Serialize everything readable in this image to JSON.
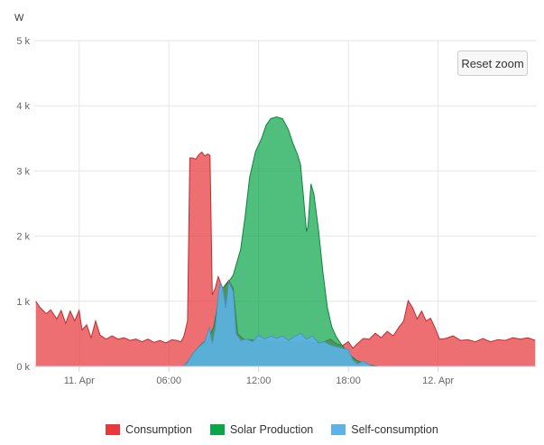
{
  "chart_data": {
    "type": "area",
    "y_unit_label": "W",
    "ylim": [
      0,
      5000
    ],
    "y_ticks": [
      0,
      1000,
      2000,
      3000,
      4000,
      5000
    ],
    "y_tick_labels": [
      "0 k",
      "1 k",
      "2 k",
      "3 k",
      "4 k",
      "5 k"
    ],
    "x_range_hours": [
      -7.0,
      47.0
    ],
    "x_ticks": [
      {
        "hour": 0,
        "label": "11. Apr"
      },
      {
        "hour": 6,
        "label": "06:00"
      },
      {
        "hour": 12,
        "label": "12:00"
      },
      {
        "hour": 18,
        "label": "18:00"
      },
      {
        "hour": 24,
        "label": "12. Apr"
      }
    ],
    "grid": true,
    "legend_position": "bottom-center",
    "series": [
      {
        "name": "Consumption",
        "color": "#e8383b",
        "fill_opacity": 0.72,
        "points": [
          [
            -2.9,
            1000
          ],
          [
            -2.6,
            900
          ],
          [
            -2.2,
            810
          ],
          [
            -1.9,
            870
          ],
          [
            -1.5,
            730
          ],
          [
            -1.2,
            860
          ],
          [
            -0.9,
            660
          ],
          [
            -0.6,
            850
          ],
          [
            -0.3,
            700
          ],
          [
            0.0,
            860
          ],
          [
            0.2,
            560
          ],
          [
            0.5,
            640
          ],
          [
            0.8,
            440
          ],
          [
            1.1,
            700
          ],
          [
            1.4,
            480
          ],
          [
            1.8,
            420
          ],
          [
            2.2,
            470
          ],
          [
            2.6,
            420
          ],
          [
            3.0,
            440
          ],
          [
            3.4,
            400
          ],
          [
            3.8,
            420
          ],
          [
            4.2,
            380
          ],
          [
            4.6,
            420
          ],
          [
            5.0,
            370
          ],
          [
            5.4,
            400
          ],
          [
            5.8,
            360
          ],
          [
            6.2,
            410
          ],
          [
            6.5,
            400
          ],
          [
            6.8,
            380
          ],
          [
            7.0,
            460
          ],
          [
            7.25,
            700
          ],
          [
            7.4,
            3200
          ],
          [
            7.6,
            3200
          ],
          [
            7.8,
            3180
          ],
          [
            8.0,
            3250
          ],
          [
            8.2,
            3290
          ],
          [
            8.4,
            3230
          ],
          [
            8.6,
            3260
          ],
          [
            8.75,
            3240
          ],
          [
            8.9,
            1100
          ],
          [
            9.1,
            1200
          ],
          [
            9.3,
            1380
          ],
          [
            9.6,
            1200
          ],
          [
            10.0,
            1320
          ],
          [
            10.3,
            1200
          ],
          [
            10.6,
            500
          ],
          [
            11.0,
            420
          ],
          [
            12.0,
            400
          ],
          [
            13.0,
            380
          ],
          [
            14.0,
            380
          ],
          [
            15.0,
            380
          ],
          [
            16.0,
            360
          ],
          [
            16.4,
            380
          ],
          [
            16.8,
            420
          ],
          [
            17.2,
            350
          ],
          [
            17.6,
            320
          ],
          [
            18.0,
            380
          ],
          [
            18.3,
            280
          ],
          [
            18.6,
            350
          ],
          [
            19.0,
            430
          ],
          [
            19.4,
            420
          ],
          [
            19.8,
            510
          ],
          [
            20.2,
            440
          ],
          [
            20.6,
            540
          ],
          [
            21.0,
            470
          ],
          [
            21.4,
            610
          ],
          [
            21.7,
            700
          ],
          [
            22.0,
            1010
          ],
          [
            22.3,
            900
          ],
          [
            22.6,
            730
          ],
          [
            22.9,
            850
          ],
          [
            23.2,
            700
          ],
          [
            23.5,
            740
          ],
          [
            23.8,
            590
          ],
          [
            24.1,
            420
          ],
          [
            24.5,
            430
          ],
          [
            25.0,
            470
          ],
          [
            25.5,
            400
          ],
          [
            26.0,
            410
          ],
          [
            26.5,
            380
          ],
          [
            27.0,
            430
          ],
          [
            27.5,
            380
          ],
          [
            28.0,
            410
          ],
          [
            28.5,
            400
          ],
          [
            29.0,
            440
          ],
          [
            29.5,
            420
          ],
          [
            30.0,
            440
          ],
          [
            30.5,
            400
          ]
        ]
      },
      {
        "name": "Solar Production",
        "color": "#0ca54a",
        "fill_opacity": 0.72,
        "points": [
          [
            7.0,
            0
          ],
          [
            7.4,
            120
          ],
          [
            7.8,
            250
          ],
          [
            8.2,
            350
          ],
          [
            8.6,
            420
          ],
          [
            9.0,
            600
          ],
          [
            9.3,
            1000
          ],
          [
            9.6,
            1200
          ],
          [
            10.0,
            1300
          ],
          [
            10.3,
            1400
          ],
          [
            10.8,
            1800
          ],
          [
            11.1,
            2300
          ],
          [
            11.4,
            2900
          ],
          [
            11.8,
            3300
          ],
          [
            12.2,
            3500
          ],
          [
            12.5,
            3700
          ],
          [
            12.8,
            3800
          ],
          [
            13.2,
            3830
          ],
          [
            13.6,
            3800
          ],
          [
            14.0,
            3630
          ],
          [
            14.3,
            3420
          ],
          [
            14.6,
            3250
          ],
          [
            14.8,
            3100
          ],
          [
            15.0,
            2600
          ],
          [
            15.2,
            2070
          ],
          [
            15.3,
            2150
          ],
          [
            15.5,
            2800
          ],
          [
            15.7,
            2640
          ],
          [
            16.0,
            2100
          ],
          [
            16.3,
            1450
          ],
          [
            16.6,
            900
          ],
          [
            16.9,
            600
          ],
          [
            17.2,
            450
          ],
          [
            17.5,
            350
          ],
          [
            18.0,
            200
          ],
          [
            18.5,
            100
          ],
          [
            19.0,
            50
          ],
          [
            19.5,
            20
          ],
          [
            20.0,
            0
          ]
        ]
      },
      {
        "name": "Self-consumption",
        "color": "#5cb3e8",
        "fill_opacity": 0.88,
        "points": [
          [
            6.9,
            0
          ],
          [
            7.2,
            50
          ],
          [
            7.6,
            200
          ],
          [
            8.0,
            300
          ],
          [
            8.4,
            380
          ],
          [
            8.7,
            600
          ],
          [
            8.9,
            350
          ],
          [
            9.1,
            600
          ],
          [
            9.3,
            1100
          ],
          [
            9.45,
            1280
          ],
          [
            9.6,
            1200
          ],
          [
            9.8,
            900
          ],
          [
            10.0,
            1300
          ],
          [
            10.3,
            1150
          ],
          [
            10.5,
            500
          ],
          [
            10.8,
            400
          ],
          [
            11.2,
            420
          ],
          [
            11.6,
            380
          ],
          [
            12.0,
            480
          ],
          [
            12.4,
            420
          ],
          [
            12.8,
            470
          ],
          [
            13.2,
            430
          ],
          [
            13.6,
            470
          ],
          [
            14.0,
            400
          ],
          [
            14.4,
            460
          ],
          [
            14.8,
            510
          ],
          [
            15.2,
            420
          ],
          [
            15.6,
            470
          ],
          [
            16.0,
            360
          ],
          [
            16.4,
            380
          ],
          [
            16.8,
            330
          ],
          [
            17.2,
            300
          ],
          [
            17.6,
            280
          ],
          [
            18.0,
            260
          ],
          [
            18.3,
            100
          ],
          [
            18.6,
            40
          ],
          [
            19.0,
            80
          ],
          [
            19.3,
            40
          ],
          [
            19.6,
            0
          ]
        ]
      }
    ]
  },
  "ui": {
    "reset_zoom_label": "Reset zoom"
  }
}
